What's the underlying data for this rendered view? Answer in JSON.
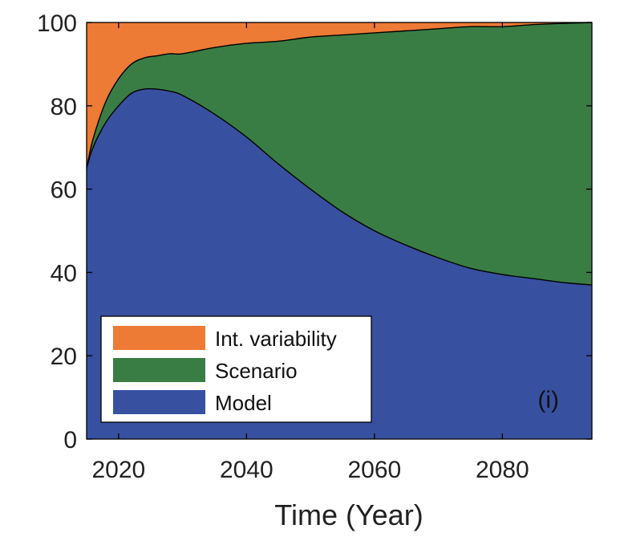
{
  "chart_data": {
    "type": "area",
    "stacked": true,
    "title": "",
    "xlabel": "Time (Year)",
    "ylabel": "",
    "xlim": [
      2015,
      2094
    ],
    "ylim": [
      0,
      100
    ],
    "xticks": [
      2020,
      2040,
      2060,
      2080
    ],
    "yticks": [
      0,
      20,
      40,
      60,
      80,
      100
    ],
    "xtick_labels": [
      "2020",
      "2040",
      "2060",
      "2080"
    ],
    "ytick_labels": [
      "0",
      "20",
      "40",
      "60",
      "80",
      "100"
    ],
    "grid": false,
    "legend_position": "bottom-left",
    "panel_label": "(i)",
    "x": [
      2015,
      2016,
      2018,
      2020,
      2022,
      2024,
      2026,
      2028,
      2030,
      2035,
      2040,
      2045,
      2050,
      2055,
      2060,
      2065,
      2070,
      2075,
      2080,
      2085,
      2090,
      2094
    ],
    "series": [
      {
        "name": "Model",
        "color": "#3850a0",
        "values": [
          65,
          70,
          76,
          80,
          83,
          84,
          84,
          83.5,
          82.5,
          78,
          72.5,
          66,
          60,
          54.5,
          50,
          46.5,
          43.5,
          41,
          39.5,
          38.5,
          37.5,
          37
        ]
      },
      {
        "name": "Scenario",
        "color": "#3a7d44",
        "values": [
          0,
          2,
          5,
          6.5,
          7,
          7.5,
          8,
          9,
          10,
          16,
          22.5,
          29.5,
          36.5,
          42.5,
          47.5,
          51.5,
          55,
          58,
          59.5,
          61,
          62.3,
          63
        ]
      },
      {
        "name": "Int. variability",
        "color": "#ed7a35",
        "values": [
          35,
          28,
          19,
          13.5,
          10,
          8.5,
          8,
          7.5,
          7.5,
          6,
          5,
          4.5,
          3.5,
          3,
          2.5,
          2,
          1.5,
          1,
          1,
          0.5,
          0.2,
          0
        ]
      }
    ],
    "legend_entries": [
      "Int. variability",
      "Scenario",
      "Model"
    ]
  }
}
